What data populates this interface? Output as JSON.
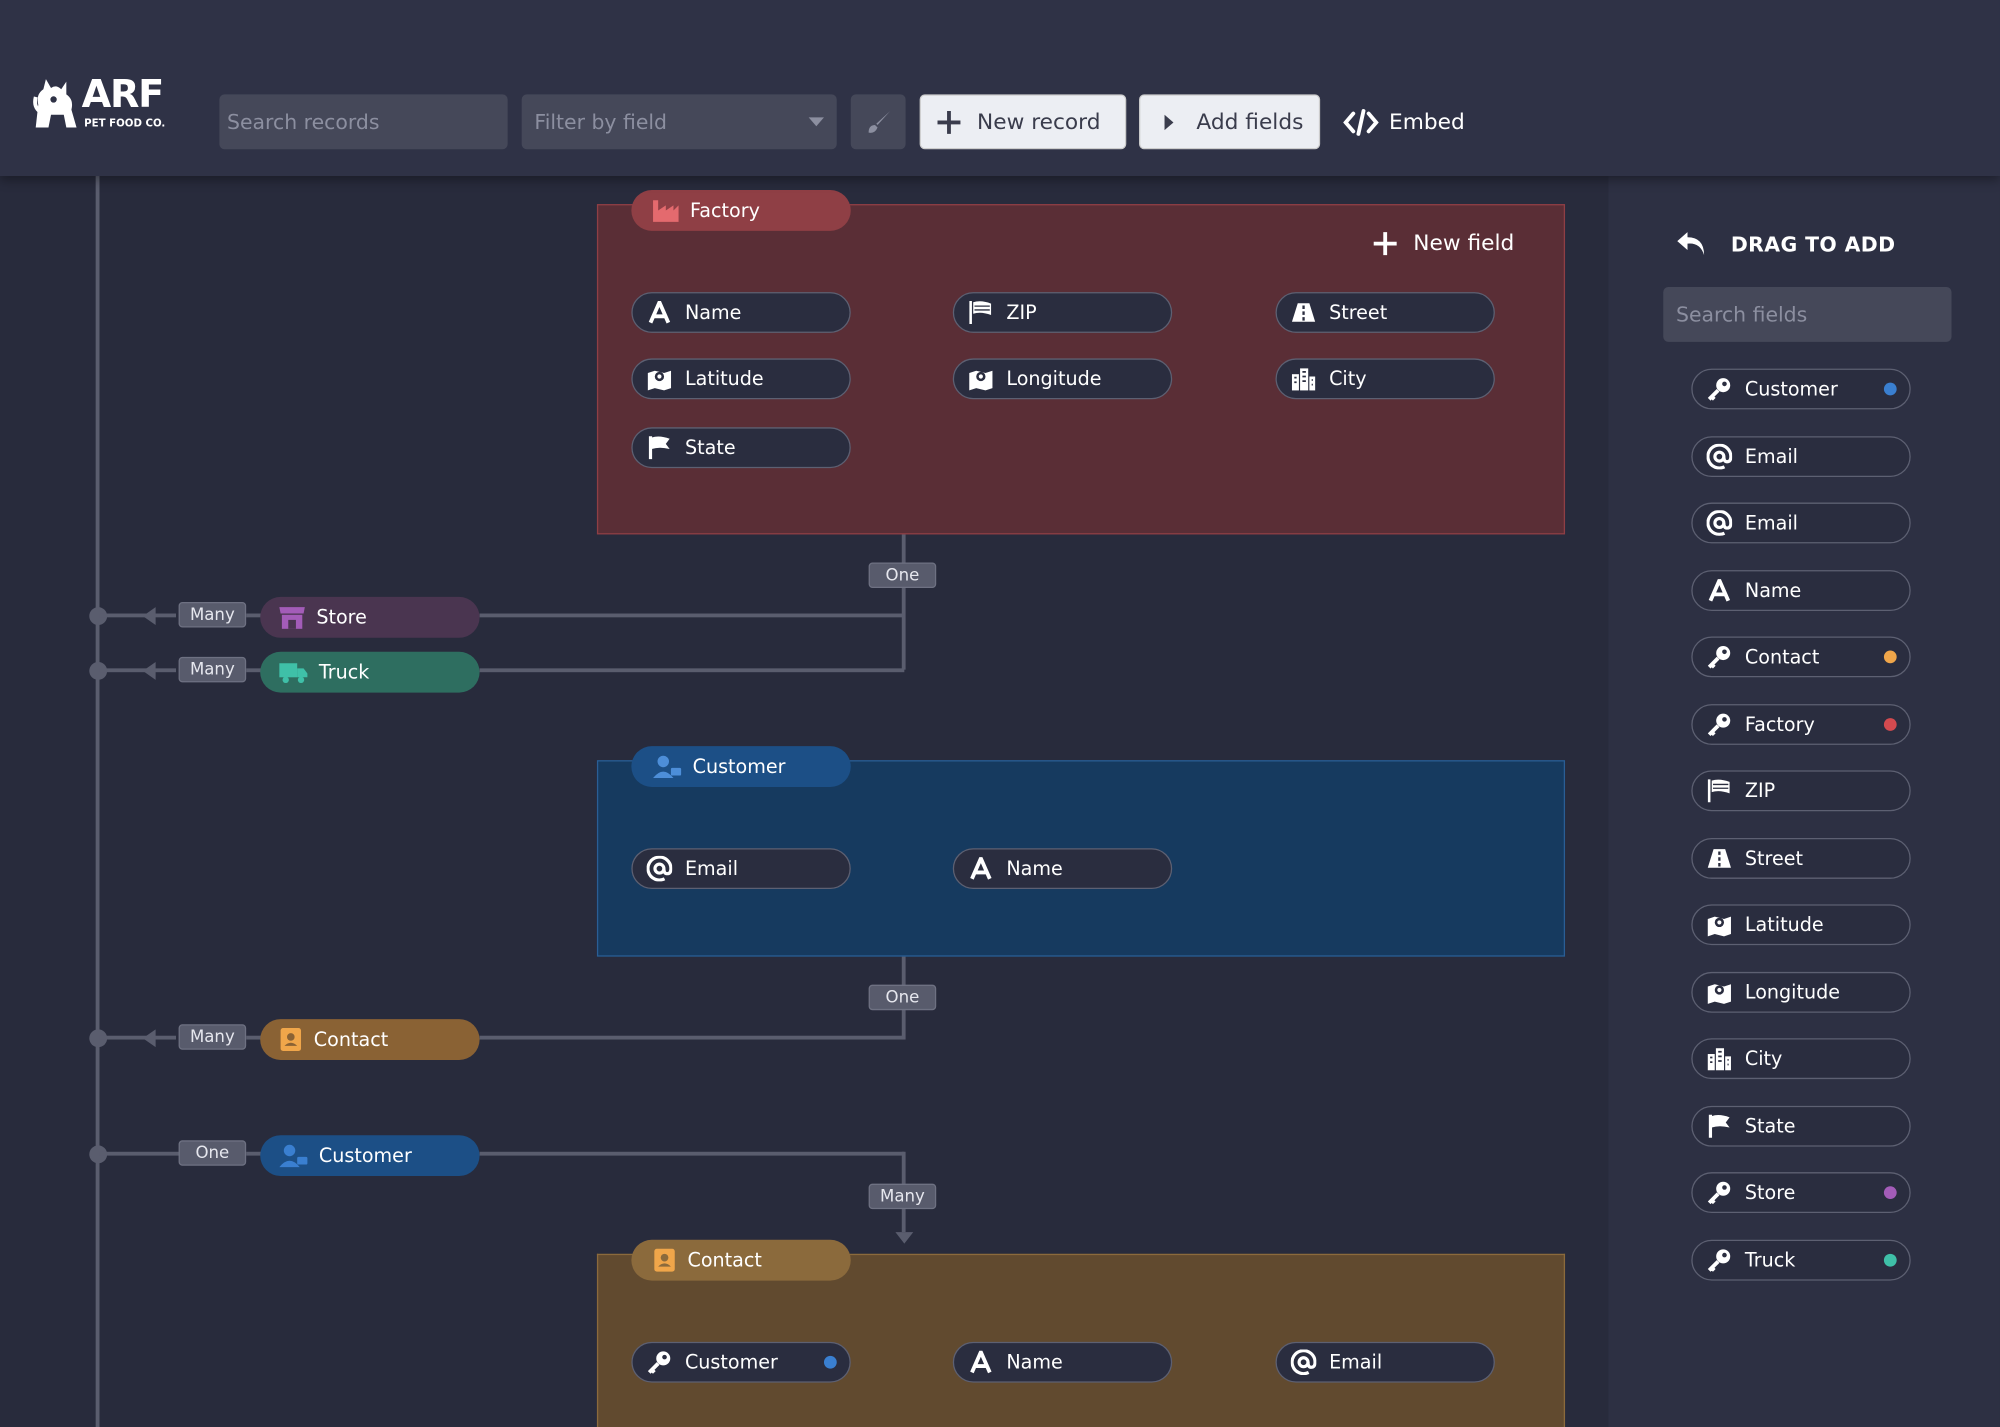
{
  "brand": {
    "name": "ARF",
    "tagline": "PET FOOD CO."
  },
  "toolbar": {
    "search_placeholder": "Search records",
    "filter_placeholder": "Filter by field",
    "new_record_label": "New record",
    "add_fields_label": "Add fields",
    "embed_label": "Embed"
  },
  "colors": {
    "factory": "#c44b4f",
    "customer": "#3a7fd0",
    "contact": "#f0a64a",
    "store": "#a35cb8",
    "truck": "#3fc0a8"
  },
  "factory_card": {
    "title": "Factory",
    "new_field_label": "New field",
    "fields": [
      {
        "label": "Name",
        "icon": "letter-a-icon"
      },
      {
        "label": "ZIP",
        "icon": "flag-waving-icon"
      },
      {
        "label": "Street",
        "icon": "road-icon"
      },
      {
        "label": "Latitude",
        "icon": "map-pin-icon"
      },
      {
        "label": "Longitude",
        "icon": "map-pin-icon"
      },
      {
        "label": "City",
        "icon": "city-icon"
      },
      {
        "label": "State",
        "icon": "flag-icon"
      }
    ]
  },
  "customer_card": {
    "title": "Customer",
    "fields": [
      {
        "label": "Email",
        "icon": "at-icon"
      },
      {
        "label": "Name",
        "icon": "letter-a-icon"
      }
    ]
  },
  "contact_card": {
    "title": "Contact",
    "fields": [
      {
        "label": "Customer",
        "icon": "key-icon"
      },
      {
        "label": "Name",
        "icon": "letter-a-icon"
      },
      {
        "label": "Email",
        "icon": "at-icon"
      }
    ]
  },
  "relations": {
    "factory_one": "One",
    "store": {
      "cardinality": "Many",
      "label": "Store"
    },
    "truck": {
      "cardinality": "Many",
      "label": "Truck"
    },
    "customer_one": "One",
    "contact": {
      "cardinality": "Many",
      "label": "Contact"
    },
    "customer_link": {
      "cardinality": "One",
      "label": "Customer"
    },
    "contact_many": "Many"
  },
  "panel": {
    "title": "DRAG TO ADD",
    "search_placeholder": "Search fields",
    "items": [
      {
        "label": "Customer",
        "icon": "key-icon",
        "dot": "#3a7fd0"
      },
      {
        "label": "Email",
        "icon": "at-icon"
      },
      {
        "label": "Email",
        "icon": "at-icon"
      },
      {
        "label": "Name",
        "icon": "letter-a-icon"
      },
      {
        "label": "Contact",
        "icon": "key-icon",
        "dot": "#f0a64a"
      },
      {
        "label": "Factory",
        "icon": "key-icon",
        "dot": "#d34a4f"
      },
      {
        "label": "ZIP",
        "icon": "flag-waving-icon"
      },
      {
        "label": "Street",
        "icon": "road-icon"
      },
      {
        "label": "Latitude",
        "icon": "map-pin-icon"
      },
      {
        "label": "Longitude",
        "icon": "map-pin-icon"
      },
      {
        "label": "City",
        "icon": "city-icon"
      },
      {
        "label": "State",
        "icon": "flag-icon"
      },
      {
        "label": "Store",
        "icon": "key-icon",
        "dot": "#a35cb8"
      },
      {
        "label": "Truck",
        "icon": "key-icon",
        "dot": "#3fc0a8"
      }
    ]
  }
}
